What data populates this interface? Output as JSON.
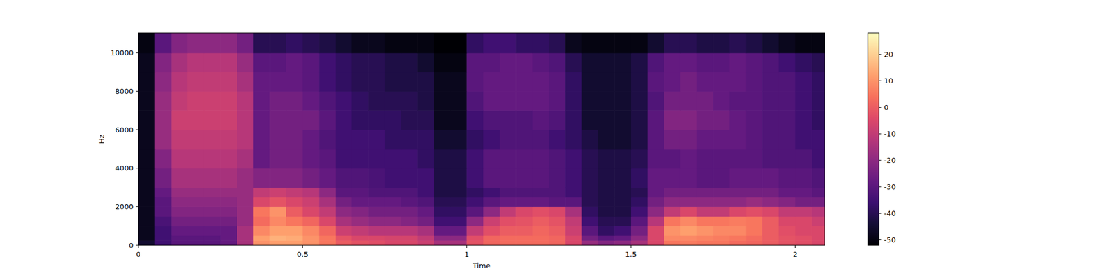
{
  "chart_data": {
    "type": "heatmap",
    "x_label": "Time",
    "y_label": "Hz",
    "color": "magma",
    "x_edges": [
      0,
      0.05,
      0.1,
      0.15,
      0.2,
      0.25,
      0.3,
      0.35,
      0.4,
      0.45,
      0.5,
      0.55,
      0.6,
      0.65,
      0.7,
      0.75,
      0.8,
      0.85,
      0.9,
      0.95,
      1.0,
      1.05,
      1.1,
      1.15,
      1.2,
      1.25,
      1.3,
      1.35,
      1.4,
      1.45,
      1.5,
      1.55,
      1.6,
      1.65,
      1.7,
      1.75,
      1.8,
      1.85,
      1.9,
      1.95,
      2.0,
      2.05,
      2.09
    ],
    "y_edges": [
      0,
      250,
      500,
      1000,
      1500,
      2000,
      2500,
      3000,
      4000,
      5000,
      6000,
      7000,
      8000,
      9000,
      10000,
      11025
    ],
    "cells": [
      [
        -45,
        -35,
        -30,
        -30,
        -30,
        -28,
        -15,
        10,
        12,
        12,
        10,
        5,
        0,
        -2,
        -3,
        -5,
        -5,
        -8,
        -15,
        -15,
        -2,
        2,
        3,
        3,
        3,
        2,
        -5,
        -18,
        -22,
        -20,
        -15,
        -5,
        5,
        6,
        5,
        5,
        3,
        2,
        0,
        -2,
        -3,
        -5
      ],
      [
        -48,
        -35,
        -30,
        -30,
        -30,
        -28,
        -15,
        12,
        15,
        14,
        10,
        5,
        -2,
        -5,
        -5,
        -6,
        -6,
        -10,
        -20,
        -20,
        -3,
        2,
        3,
        3,
        3,
        2,
        -5,
        -25,
        -30,
        -28,
        -20,
        -5,
        8,
        8,
        7,
        6,
        5,
        3,
        0,
        -2,
        -3,
        -5
      ],
      [
        -48,
        -35,
        -28,
        -28,
        -28,
        -28,
        -15,
        8,
        12,
        12,
        8,
        2,
        -8,
        -10,
        -12,
        -12,
        -12,
        -15,
        -28,
        -28,
        -10,
        -3,
        0,
        0,
        2,
        0,
        -8,
        -30,
        -38,
        -35,
        -25,
        -5,
        10,
        12,
        10,
        8,
        8,
        5,
        0,
        -3,
        -5,
        -5
      ],
      [
        -48,
        -33,
        -25,
        -25,
        -25,
        -25,
        -18,
        3,
        8,
        5,
        2,
        -5,
        -15,
        -18,
        -20,
        -20,
        -22,
        -25,
        -35,
        -35,
        -20,
        -8,
        -3,
        -2,
        0,
        -2,
        -10,
        -35,
        -40,
        -40,
        -30,
        -12,
        5,
        8,
        5,
        5,
        6,
        5,
        0,
        -5,
        -5,
        -8
      ],
      [
        -48,
        -30,
        -22,
        -22,
        -22,
        -22,
        -18,
        5,
        10,
        0,
        -5,
        -10,
        -20,
        -22,
        -25,
        -25,
        -25,
        -28,
        -38,
        -38,
        -30,
        -20,
        -10,
        -5,
        -3,
        -5,
        -15,
        -38,
        -42,
        -42,
        -35,
        -20,
        -10,
        -5,
        -10,
        -10,
        -5,
        -3,
        -5,
        -10,
        -10,
        -12
      ],
      [
        -48,
        -30,
        -20,
        -20,
        -20,
        -20,
        -18,
        -5,
        -2,
        -5,
        -8,
        -15,
        -25,
        -28,
        -28,
        -28,
        -30,
        -32,
        -40,
        -40,
        -35,
        -30,
        -28,
        -28,
        -28,
        -30,
        -30,
        -40,
        -42,
        -42,
        -38,
        -25,
        -20,
        -20,
        -20,
        -20,
        -20,
        -18,
        -20,
        -22,
        -25,
        -25
      ],
      [
        -48,
        -28,
        -18,
        -18,
        -18,
        -18,
        -18,
        -10,
        -8,
        -10,
        -12,
        -20,
        -30,
        -30,
        -32,
        -32,
        -32,
        -35,
        -42,
        -42,
        -38,
        -35,
        -32,
        -32,
        -32,
        -32,
        -35,
        -40,
        -42,
        -42,
        -40,
        -28,
        -25,
        -25,
        -25,
        -25,
        -25,
        -25,
        -25,
        -28,
        -28,
        -30
      ],
      [
        -48,
        -25,
        -15,
        -15,
        -15,
        -15,
        -18,
        -22,
        -22,
        -22,
        -25,
        -28,
        -32,
        -32,
        -33,
        -35,
        -35,
        -35,
        -42,
        -42,
        -35,
        -30,
        -30,
        -30,
        -30,
        -32,
        -35,
        -40,
        -42,
        -42,
        -38,
        -28,
        -28,
        -28,
        -30,
        -30,
        -28,
        -28,
        -28,
        -30,
        -30,
        -32
      ],
      [
        -48,
        -22,
        -12,
        -12,
        -12,
        -12,
        -15,
        -28,
        -25,
        -25,
        -28,
        -30,
        -35,
        -35,
        -35,
        -35,
        -35,
        -38,
        -42,
        -42,
        -35,
        -30,
        -30,
        -30,
        -30,
        -32,
        -35,
        -40,
        -42,
        -42,
        -40,
        -30,
        -30,
        -28,
        -30,
        -30,
        -30,
        -30,
        -32,
        -32,
        -32,
        -35
      ],
      [
        -48,
        -18,
        -10,
        -10,
        -10,
        -10,
        -12,
        -28,
        -25,
        -25,
        -28,
        -32,
        -35,
        -35,
        -35,
        -38,
        -38,
        -38,
        -45,
        -45,
        -38,
        -35,
        -32,
        -32,
        -32,
        -35,
        -38,
        -42,
        -45,
        -45,
        -42,
        -30,
        -25,
        -25,
        -28,
        -28,
        -28,
        -30,
        -32,
        -32,
        -35,
        -35
      ],
      [
        -48,
        -18,
        -8,
        -8,
        -8,
        -8,
        -12,
        -28,
        -25,
        -25,
        -25,
        -30,
        -35,
        -38,
        -38,
        -38,
        -40,
        -40,
        -48,
        -48,
        -35,
        -32,
        -32,
        -32,
        -30,
        -32,
        -38,
        -45,
        -45,
        -45,
        -42,
        -30,
        -22,
        -22,
        -25,
        -25,
        -28,
        -30,
        -32,
        -32,
        -35,
        -38
      ],
      [
        -48,
        -18,
        -10,
        -8,
        -8,
        -8,
        -12,
        -28,
        -25,
        -25,
        -28,
        -32,
        -35,
        -38,
        -40,
        -40,
        -40,
        -42,
        -48,
        -48,
        -32,
        -28,
        -28,
        -28,
        -28,
        -30,
        -38,
        -45,
        -45,
        -45,
        -42,
        -32,
        -25,
        -25,
        -25,
        -28,
        -30,
        -30,
        -32,
        -32,
        -35,
        -38
      ],
      [
        -48,
        -20,
        -12,
        -10,
        -10,
        -10,
        -15,
        -28,
        -28,
        -28,
        -30,
        -35,
        -38,
        -40,
        -40,
        -42,
        -42,
        -42,
        -48,
        -48,
        -30,
        -28,
        -28,
        -28,
        -28,
        -30,
        -38,
        -45,
        -45,
        -45,
        -42,
        -30,
        -28,
        -25,
        -28,
        -28,
        -28,
        -30,
        -32,
        -32,
        -35,
        -38
      ],
      [
        -48,
        -22,
        -15,
        -12,
        -12,
        -12,
        -18,
        -30,
        -30,
        -28,
        -30,
        -35,
        -38,
        -40,
        -40,
        -42,
        -42,
        -45,
        -50,
        -50,
        -30,
        -30,
        -28,
        -28,
        -30,
        -32,
        -40,
        -45,
        -45,
        -45,
        -42,
        -32,
        -28,
        -28,
        -30,
        -30,
        -28,
        -30,
        -32,
        -35,
        -38,
        -40
      ],
      [
        -50,
        -30,
        -22,
        -20,
        -20,
        -20,
        -25,
        -40,
        -40,
        -38,
        -40,
        -42,
        -45,
        -48,
        -48,
        -50,
        -50,
        -50,
        -52,
        -52,
        -38,
        -35,
        -35,
        -38,
        -38,
        -40,
        -48,
        -50,
        -50,
        -50,
        -50,
        -45,
        -40,
        -40,
        -42,
        -42,
        -40,
        -42,
        -45,
        -48,
        -50,
        -50
      ]
    ],
    "xlim": [
      0,
      2.09
    ],
    "ylim": [
      0,
      11025
    ],
    "xticks": [
      0,
      0.5,
      1,
      1.5,
      2
    ],
    "yticks": [
      0,
      2000,
      4000,
      6000,
      8000,
      10000
    ],
    "colorbar": {
      "range": [
        -52,
        28
      ],
      "ticks": [
        -50,
        -40,
        -30,
        -20,
        -10,
        0,
        10,
        20
      ]
    }
  }
}
